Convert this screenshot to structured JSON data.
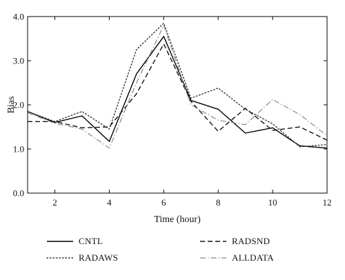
{
  "chart_data": {
    "type": "line",
    "xlabel": "Time (hour)",
    "ylabel": "Bias",
    "xlim": [
      1,
      12
    ],
    "ylim": [
      0,
      4
    ],
    "xticks": [
      2,
      4,
      6,
      8,
      10,
      12
    ],
    "yticks": [
      0,
      1,
      2,
      3,
      4
    ],
    "xtick_labels": [
      "2",
      "4",
      "6",
      "8",
      "10",
      "12"
    ],
    "ytick_labels": [
      "0.0",
      "1.0",
      "2.0",
      "3.0",
      "4.0"
    ],
    "grid": false,
    "legend_position": "below plot, two columns",
    "x": [
      1,
      2,
      3,
      4,
      5,
      6,
      7,
      8,
      9,
      10,
      11,
      12
    ],
    "series": [
      {
        "name": "CNTL",
        "style": "solid",
        "color": "#000000",
        "values": [
          1.85,
          1.6,
          1.75,
          1.17,
          2.7,
          3.55,
          2.1,
          1.9,
          1.36,
          1.48,
          1.07,
          1.02
        ]
      },
      {
        "name": "RADAWS",
        "style": "dotted",
        "color": "#333333",
        "values": [
          1.85,
          1.62,
          1.85,
          1.45,
          3.25,
          3.85,
          2.15,
          2.38,
          1.9,
          1.57,
          1.05,
          1.1
        ]
      },
      {
        "name": "RADSND",
        "style": "dashed",
        "color": "#111111",
        "values": [
          1.62,
          1.62,
          1.48,
          1.5,
          2.25,
          3.38,
          2.08,
          1.4,
          1.92,
          1.42,
          1.5,
          1.2
        ]
      },
      {
        "name": "ALLDATA",
        "style": "dashdot",
        "color": "#888888",
        "values": [
          1.82,
          1.58,
          1.45,
          1.02,
          2.5,
          3.8,
          2.0,
          1.65,
          1.55,
          2.12,
          1.78,
          1.3
        ]
      }
    ]
  }
}
